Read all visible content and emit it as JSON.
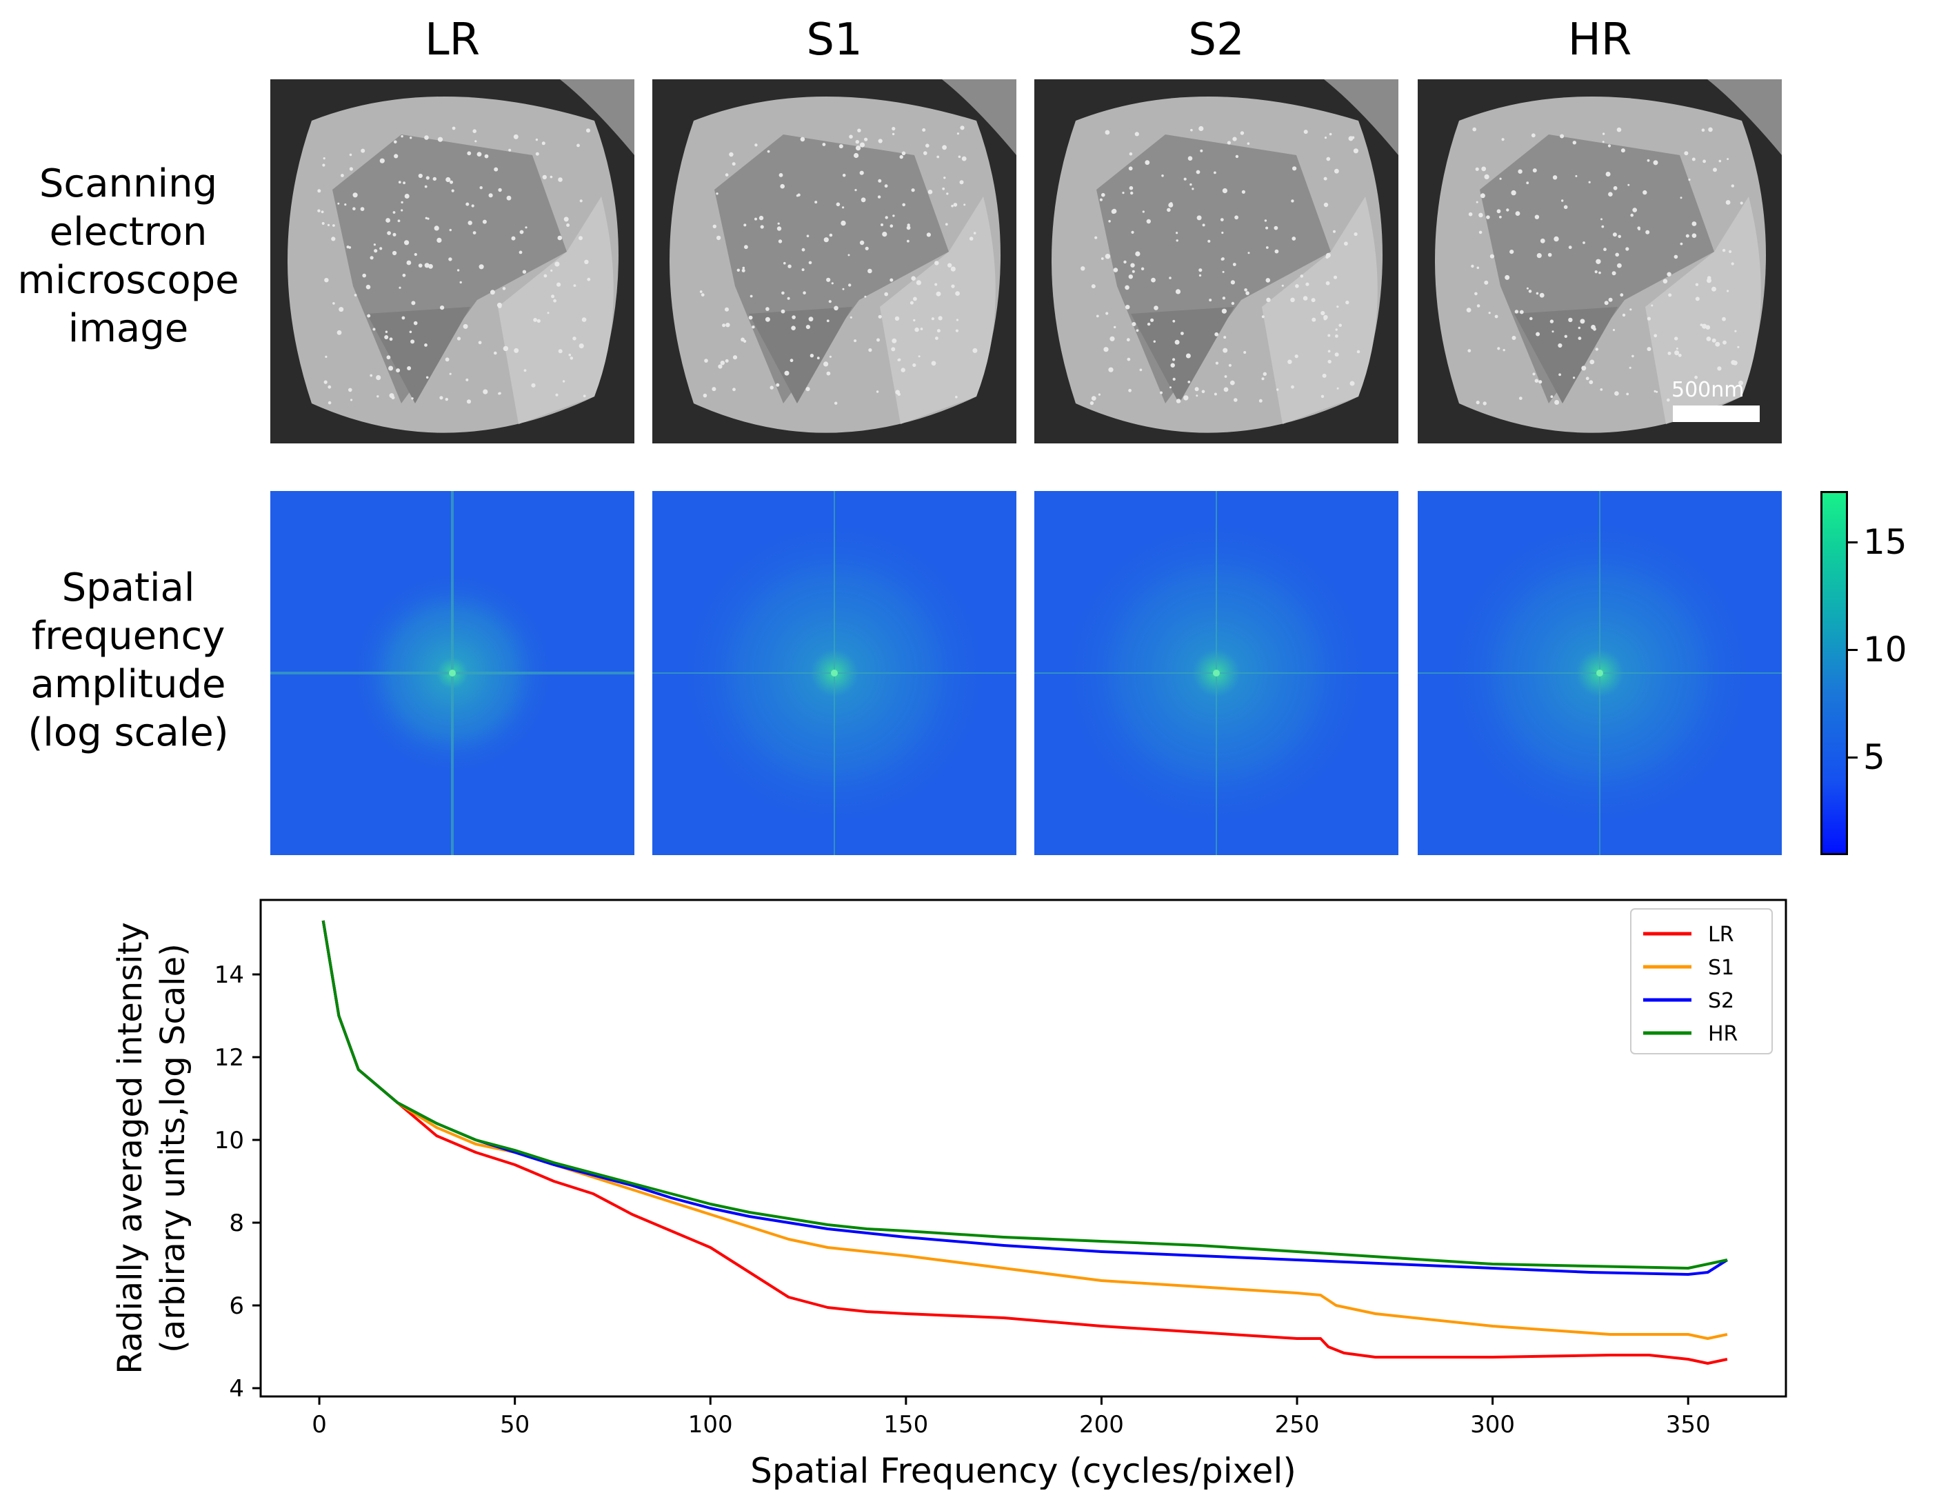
{
  "columns": [
    "LR",
    "S1",
    "S2",
    "HR"
  ],
  "row_labels": {
    "sem": [
      "Scanning",
      "electron",
      "microscope",
      "image"
    ],
    "fft": [
      "Spatial",
      "frequency",
      "amplitude",
      "(log scale)"
    ]
  },
  "scale_bar": "500nm",
  "colorbar": {
    "ticks": [
      "15",
      "10",
      "5"
    ],
    "values": [
      15,
      10,
      5
    ],
    "range": [
      0.3,
      17.2
    ]
  },
  "colors": {
    "LR": "#ff0000",
    "S1": "#ff9900",
    "S2": "#0000ff",
    "HR": "#008800",
    "fft_bg": "#1f5ee8"
  },
  "chart_data": {
    "type": "line",
    "xlabel": "Spatial Frequency (cycles/pixel)",
    "ylabel_lines": [
      "Radially averaged intensity",
      "(arbirary units,log Scale)"
    ],
    "xlim": [
      -15,
      375
    ],
    "ylim": [
      3.8,
      15.8
    ],
    "xticks": [
      0,
      50,
      100,
      150,
      200,
      250,
      300,
      350
    ],
    "yticks": [
      4,
      6,
      8,
      10,
      12,
      14
    ],
    "legend_position": "top-right",
    "series": [
      {
        "name": "LR",
        "x": [
          1,
          5,
          10,
          20,
          30,
          40,
          50,
          60,
          70,
          80,
          90,
          100,
          110,
          120,
          130,
          140,
          150,
          175,
          200,
          225,
          250,
          256,
          258,
          262,
          270,
          300,
          330,
          340,
          350,
          355,
          360
        ],
        "values": [
          15.3,
          13.0,
          11.7,
          10.9,
          10.1,
          9.7,
          9.4,
          9.0,
          8.7,
          8.2,
          7.8,
          7.4,
          6.8,
          6.2,
          5.95,
          5.85,
          5.8,
          5.7,
          5.5,
          5.35,
          5.2,
          5.2,
          5.0,
          4.85,
          4.75,
          4.75,
          4.8,
          4.8,
          4.7,
          4.6,
          4.7
        ]
      },
      {
        "name": "S1",
        "x": [
          1,
          5,
          10,
          20,
          30,
          40,
          50,
          60,
          70,
          80,
          90,
          100,
          110,
          120,
          130,
          140,
          150,
          175,
          200,
          225,
          250,
          256,
          260,
          270,
          300,
          330,
          350,
          355,
          360
        ],
        "values": [
          15.3,
          13.0,
          11.7,
          10.9,
          10.3,
          9.9,
          9.7,
          9.4,
          9.1,
          8.8,
          8.5,
          8.2,
          7.9,
          7.6,
          7.4,
          7.3,
          7.2,
          6.9,
          6.6,
          6.45,
          6.3,
          6.25,
          6.0,
          5.8,
          5.5,
          5.3,
          5.3,
          5.2,
          5.3
        ]
      },
      {
        "name": "S2",
        "x": [
          1,
          5,
          10,
          20,
          30,
          40,
          50,
          60,
          70,
          80,
          90,
          100,
          110,
          120,
          130,
          140,
          150,
          175,
          200,
          225,
          250,
          275,
          300,
          325,
          350,
          355,
          360
        ],
        "values": [
          15.3,
          13.0,
          11.7,
          10.9,
          10.4,
          10.0,
          9.7,
          9.4,
          9.15,
          8.9,
          8.6,
          8.35,
          8.15,
          8.0,
          7.85,
          7.75,
          7.65,
          7.45,
          7.3,
          7.2,
          7.1,
          7.0,
          6.9,
          6.8,
          6.75,
          6.8,
          7.1
        ]
      },
      {
        "name": "HR",
        "x": [
          1,
          5,
          10,
          20,
          30,
          40,
          50,
          60,
          70,
          80,
          90,
          100,
          110,
          120,
          130,
          140,
          150,
          175,
          200,
          225,
          250,
          275,
          300,
          325,
          350,
          355,
          360
        ],
        "values": [
          15.3,
          13.0,
          11.7,
          10.9,
          10.4,
          10.0,
          9.75,
          9.45,
          9.2,
          8.95,
          8.7,
          8.45,
          8.25,
          8.1,
          7.95,
          7.85,
          7.8,
          7.65,
          7.55,
          7.45,
          7.3,
          7.15,
          7.0,
          6.95,
          6.9,
          7.0,
          7.1
        ]
      }
    ]
  }
}
